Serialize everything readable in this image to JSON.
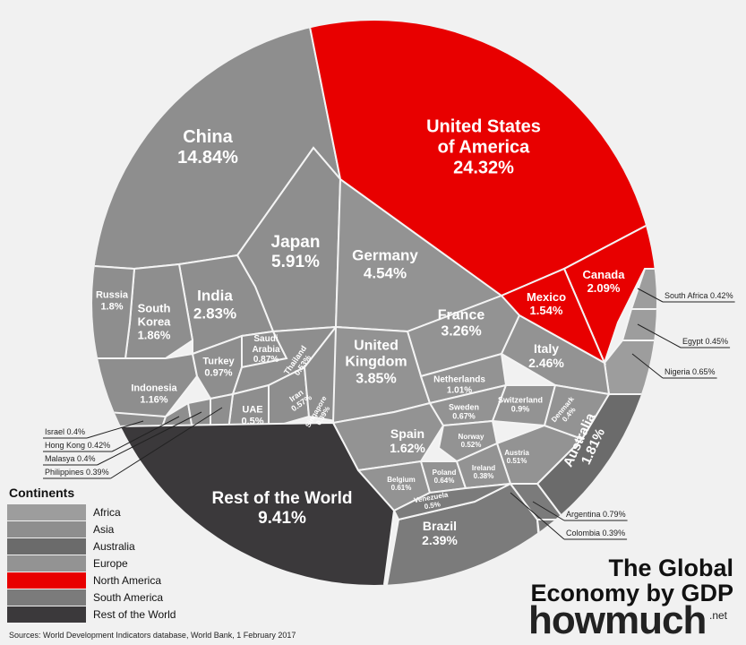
{
  "chart_data": {
    "type": "voronoi-treemap",
    "title": "The Global\nEconomy by GDP",
    "brand": "howmuch",
    "brand_suffix": ".net",
    "source": "Sources: World Development Indicators database, World Bank, 1 February 2017",
    "legend_title": "Continents",
    "series": [
      {
        "name": "Africa",
        "color": "#9d9d9d",
        "categories": [
          "South Africa",
          "Egypt",
          "Nigeria"
        ],
        "values": [
          0.42,
          0.45,
          0.65
        ],
        "value_labels": [
          "0.42%",
          "0.45%",
          "0.65%"
        ]
      },
      {
        "name": "Asia",
        "color": "#8e8e8e",
        "categories": [
          "China",
          "Japan",
          "India",
          "South\nKorea",
          "Russia",
          "Indonesia",
          "Turkey",
          "Saudi\nArabia",
          "Thailand",
          "Iran",
          "UAE",
          "Singapore",
          "Israel",
          "Hong Kong",
          "Malasya",
          "Philippines"
        ],
        "values": [
          14.84,
          5.91,
          2.83,
          1.86,
          1.8,
          1.16,
          0.97,
          0.87,
          0.53,
          0.57,
          0.5,
          0.39,
          0.4,
          0.42,
          0.4,
          0.39
        ],
        "value_labels": [
          "14.84%",
          "5.91%",
          "2.83%",
          "1.86%",
          "1.8%",
          "1.16%",
          "0.97%",
          "0.87%",
          "0.53%",
          "0.57%",
          "0.5%",
          "0.39%",
          "0.4%",
          "0.42%",
          "0.4%",
          "0.39%"
        ]
      },
      {
        "name": "Australia",
        "color": "#6b6b6b",
        "categories": [
          "Australia"
        ],
        "values": [
          1.81
        ],
        "value_labels": [
          "1.81%"
        ]
      },
      {
        "name": "Europe",
        "color": "#939393",
        "categories": [
          "Germany",
          "France",
          "United\nKingdom",
          "Italy",
          "Spain",
          "Netherlands",
          "Sweden",
          "Switzerland",
          "Norway",
          "Austria",
          "Denmark",
          "Belgium",
          "Poland",
          "Ireland"
        ],
        "values": [
          4.54,
          3.26,
          3.85,
          2.46,
          1.62,
          1.01,
          0.67,
          0.9,
          0.52,
          0.51,
          0.4,
          0.61,
          0.64,
          0.38
        ],
        "value_labels": [
          "4.54%",
          "3.26%",
          "3.85%",
          "2.46%",
          "1.62%",
          "1.01%",
          "0.67%",
          "0.9%",
          "0.52%",
          "0.51%",
          "0.4%",
          "0.61%",
          "0.64%",
          "0.38%"
        ]
      },
      {
        "name": "North America",
        "color": "#e80000",
        "categories": [
          "United States\nof America",
          "Canada",
          "Mexico"
        ],
        "values": [
          24.32,
          2.09,
          1.54
        ],
        "value_labels": [
          "24.32%",
          "2.09%",
          "1.54%"
        ]
      },
      {
        "name": "South America",
        "color": "#7b7b7b",
        "categories": [
          "Brazil",
          "Venezuela",
          "Argentina",
          "Colombia"
        ],
        "values": [
          2.39,
          0.5,
          0.79,
          0.39
        ],
        "value_labels": [
          "2.39%",
          "0.5%",
          "0.79%",
          "0.39%"
        ]
      },
      {
        "name": "Rest of the World",
        "color": "#3b393b",
        "categories": [
          "Rest of the World"
        ],
        "values": [
          9.41
        ],
        "value_labels": [
          "9.41%"
        ]
      }
    ]
  }
}
